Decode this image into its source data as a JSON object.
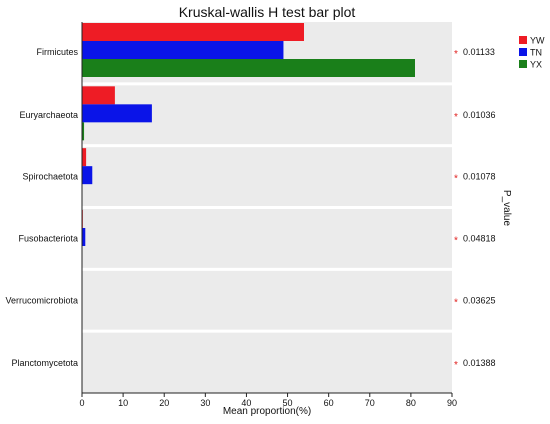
{
  "chart_data": {
    "type": "bar",
    "title": "Kruskal-wallis H test bar plot",
    "xlabel": "Mean proportion(%)",
    "right_label": "P_value",
    "xlim": [
      0,
      90
    ],
    "xticks": [
      0,
      10,
      20,
      30,
      40,
      50,
      60,
      70,
      80,
      90
    ],
    "categories": [
      "Firmicutes",
      "Euryarchaeota",
      "Spirochaetota",
      "Fusobacteriota",
      "Verrucomicrobiota",
      "Planctomycetota"
    ],
    "p_values": [
      "0.01133",
      "0.01036",
      "0.01078",
      "0.04818",
      "0.03625",
      "0.01388"
    ],
    "significance_marker": "*",
    "legend_position": "top-right",
    "series": [
      {
        "name": "YW",
        "color": "#ee1c25",
        "values": [
          54,
          8,
          1,
          0.2,
          0.1,
          0.1
        ]
      },
      {
        "name": "TN",
        "color": "#0a14e8",
        "values": [
          49,
          17,
          2.5,
          0.8,
          0.1,
          0.1
        ]
      },
      {
        "name": "YX",
        "color": "#1a7f1a",
        "values": [
          81,
          0.5,
          0.1,
          0.1,
          0.1,
          0.1
        ]
      }
    ],
    "panel_color": "#ebebeb",
    "marker_color": "#e0201e"
  }
}
